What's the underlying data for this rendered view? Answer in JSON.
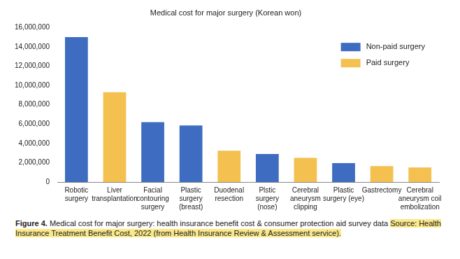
{
  "chart_data": {
    "type": "bar",
    "title": "Medical cost for major surgery (Korean won)",
    "categories": [
      "Robotic surgery",
      "Liver transplantation",
      "Facial contouring surgery",
      "Plastic surgery (breast)",
      "Duodenal resection",
      "Plstic surgery (nose)",
      "Cerebral aneurysm clipping",
      "Plastic surgery (eye)",
      "Gastrectomy",
      "Cerebral aneurysm coil embolization"
    ],
    "series": [
      {
        "name": "Non-paid surgery",
        "color": "#3d6cc0",
        "values": [
          15000000,
          null,
          6200000,
          5850000,
          null,
          2900000,
          null,
          1950000,
          null,
          null
        ]
      },
      {
        "name": "Paid surgery",
        "color": "#f4c04f",
        "values": [
          null,
          9300000,
          null,
          null,
          3250000,
          null,
          2500000,
          null,
          1650000,
          1500000
        ]
      }
    ],
    "ylim": [
      0,
      16000000
    ],
    "yticks": [
      0,
      {
        "value": 2000000,
        "label": "2,000,000"
      },
      {
        "value": 4000000,
        "label": "4,000,000"
      },
      {
        "value": 6000000,
        "label": "6,000,000"
      },
      {
        "value": 8000000,
        "label": "8,000,000"
      },
      {
        "value": 10000000,
        "label": "10,000,000"
      },
      {
        "value": 12000000,
        "label": "12,000,000"
      },
      {
        "value": 14000000,
        "label": "14,000,000"
      },
      {
        "value": 16000000,
        "label": "16,000,000"
      }
    ],
    "grid": false,
    "legend": "upper right"
  },
  "caption": {
    "figure_label": "Figure 4.",
    "text": "Medical cost for major surgery: health insurance benefit cost & consumer protection aid survey data",
    "source": "Source: Health Insurance Treatment Benefit Cost, 2022 (from Health Insurance Review & Assessment service)."
  }
}
